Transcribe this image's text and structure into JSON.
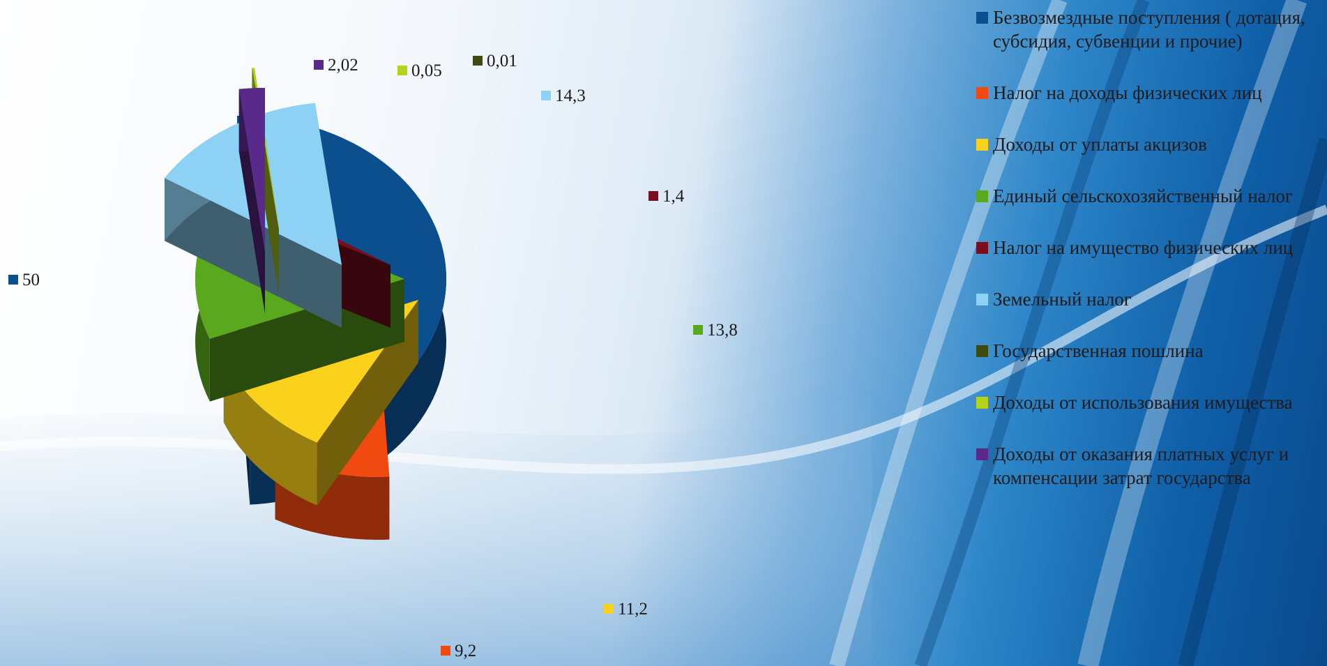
{
  "chart_data": {
    "type": "pie",
    "title": "",
    "legend_position": "right",
    "series": [
      {
        "name": "Безвозмездные поступления ( дотация, субсидия, субвенции и прочие)",
        "value": 50,
        "label": "50",
        "color": "#0b4f8f"
      },
      {
        "name": "Налог на доходы физических лиц",
        "value": 9.2,
        "label": "9,2",
        "color": "#f04a10"
      },
      {
        "name": "Доходы от уплаты акцизов",
        "value": 11.2,
        "label": "11,2",
        "color": "#fbd21b"
      },
      {
        "name": "Единый сельскохозяйственный налог",
        "value": 13.8,
        "label": "13,8",
        "color": "#5aa81e"
      },
      {
        "name": "Налог на имущество физических лиц",
        "value": 1.4,
        "label": "1,4",
        "color": "#7b0d20"
      },
      {
        "name": "Земельный налог",
        "value": 14.3,
        "label": "14,3",
        "color": "#8dd2f5"
      },
      {
        "name": "Государственная пошлина",
        "value": 0.01,
        "label": "0,01",
        "color": "#3d4a12"
      },
      {
        "name": "Доходы от использования имущества",
        "value": 0.05,
        "label": "0,05",
        "color": "#b5d21a"
      },
      {
        "name": "Доходы от оказания платных услуг и компенсации затрат государства",
        "value": 2.02,
        "label": "2,02",
        "color": "#5a2a8a"
      }
    ]
  }
}
